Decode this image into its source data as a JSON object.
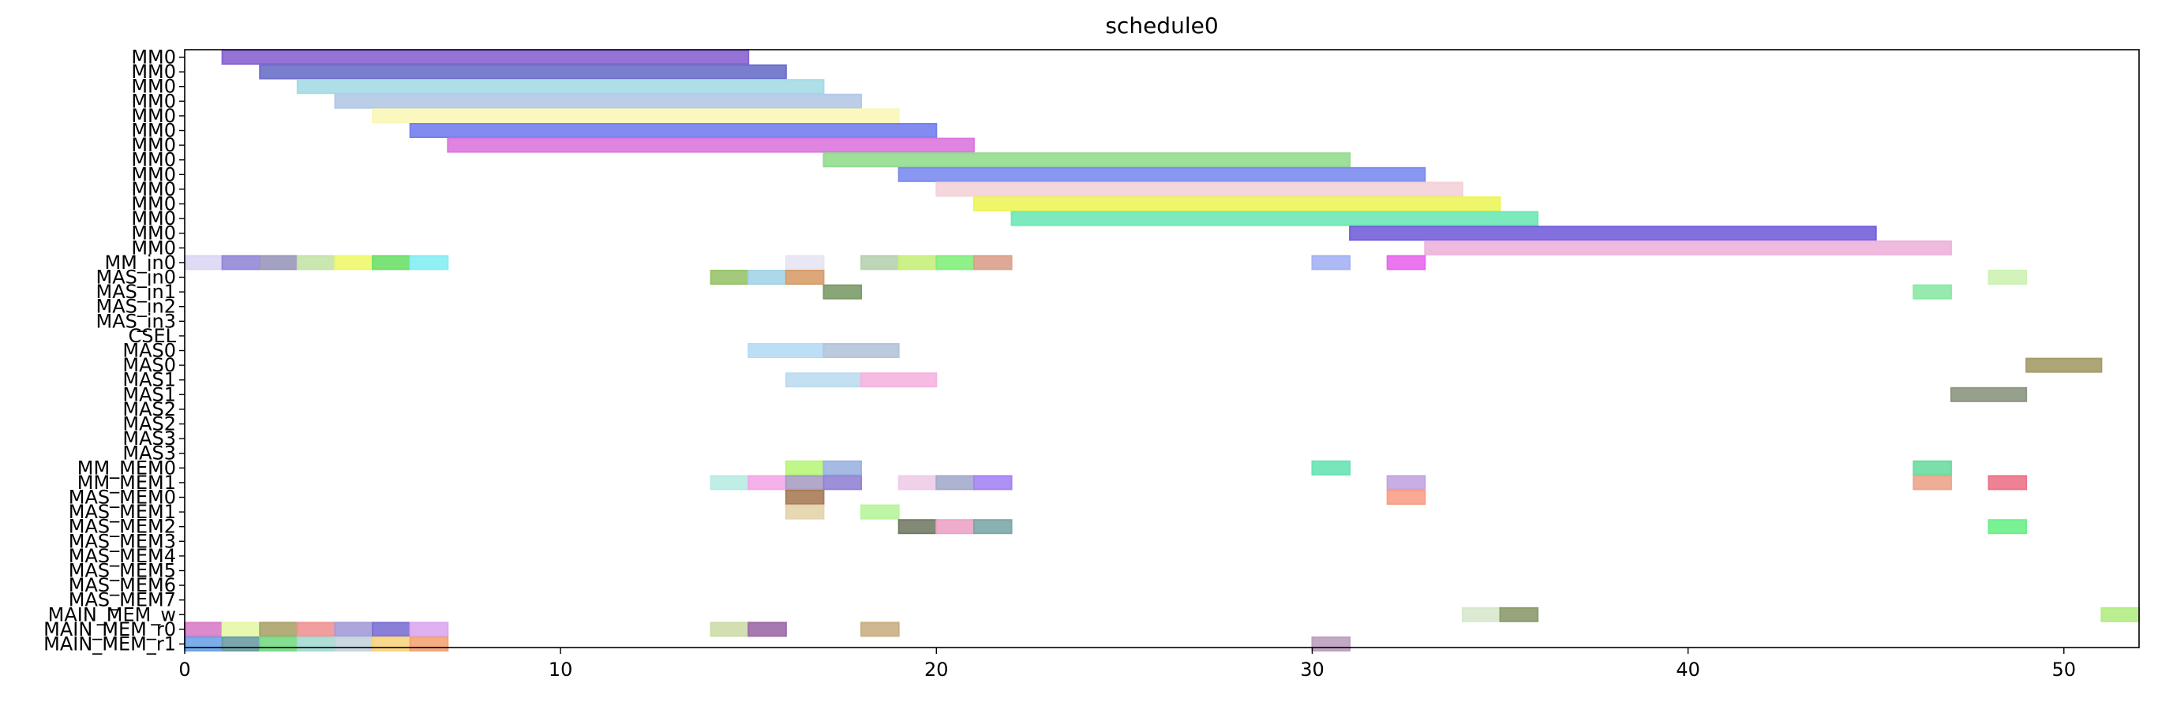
{
  "chart_data": {
    "type": "gantt",
    "title": "schedule0",
    "xlim": [
      0,
      52
    ],
    "x_ticks": [
      0,
      10,
      20,
      30,
      40,
      50
    ],
    "grid": false,
    "rows": [
      "MM0",
      "MM0",
      "MM0",
      "MM0",
      "MM0",
      "MM0",
      "MM0",
      "MM0",
      "MM0",
      "MM0",
      "MM0",
      "MM0",
      "MM0",
      "MM0",
      "MM_in0",
      "MAS_in0",
      "MAS_in1",
      "MAS_in2",
      "MAS_in3",
      "CSEL",
      "MAS0",
      "MAS0",
      "MAS1",
      "MAS1",
      "MAS2",
      "MAS2",
      "MAS3",
      "MAS3",
      "MM_MEM0",
      "MM_MEM1",
      "MAS_MEM0",
      "MAS_MEM1",
      "MAS_MEM2",
      "MAS_MEM3",
      "MAS_MEM4",
      "MAS_MEM5",
      "MAS_MEM6",
      "MAS_MEM7",
      "MAIN_MEM_w",
      "MAIN_MEM_r0",
      "MAIN_MEM_r1"
    ],
    "bars": [
      {
        "row": 0,
        "start": 1,
        "end": 15,
        "color": "#8a63d2"
      },
      {
        "row": 1,
        "start": 2,
        "end": 16,
        "color": "#6a70c8"
      },
      {
        "row": 2,
        "start": 3,
        "end": 17,
        "color": "#a5dbe6"
      },
      {
        "row": 3,
        "start": 4,
        "end": 18,
        "color": "#b4c9e6"
      },
      {
        "row": 4,
        "start": 5,
        "end": 19,
        "color": "#fbf7b8"
      },
      {
        "row": 5,
        "start": 6,
        "end": 20,
        "color": "#7480ee"
      },
      {
        "row": 6,
        "start": 7,
        "end": 21,
        "color": "#dc78de"
      },
      {
        "row": 7,
        "start": 17,
        "end": 31,
        "color": "#94dc8e"
      },
      {
        "row": 8,
        "start": 19,
        "end": 33,
        "color": "#7c8cee"
      },
      {
        "row": 9,
        "start": 20,
        "end": 34,
        "color": "#f3d2d8"
      },
      {
        "row": 10,
        "start": 21,
        "end": 35,
        "color": "#eef55a"
      },
      {
        "row": 11,
        "start": 22,
        "end": 36,
        "color": "#6ee8b6"
      },
      {
        "row": 12,
        "start": 31,
        "end": 45,
        "color": "#7460dc"
      },
      {
        "row": 13,
        "start": 33,
        "end": 47,
        "color": "#ecb4dc"
      },
      {
        "row": 14,
        "start": 0,
        "end": 1,
        "color": "#dcd6f4"
      },
      {
        "row": 14,
        "start": 1,
        "end": 2,
        "color": "#9488d8"
      },
      {
        "row": 14,
        "start": 2,
        "end": 3,
        "color": "#9a98bc"
      },
      {
        "row": 14,
        "start": 3,
        "end": 4,
        "color": "#c4e4a8"
      },
      {
        "row": 14,
        "start": 4,
        "end": 5,
        "color": "#eef86c"
      },
      {
        "row": 14,
        "start": 5,
        "end": 6,
        "color": "#6ee06a"
      },
      {
        "row": 14,
        "start": 6,
        "end": 7,
        "color": "#84eef4"
      },
      {
        "row": 14,
        "start": 16,
        "end": 17,
        "color": "#e8e4f4"
      },
      {
        "row": 14,
        "start": 18,
        "end": 19,
        "color": "#b6d2b0"
      },
      {
        "row": 14,
        "start": 19,
        "end": 20,
        "color": "#c8f07c"
      },
      {
        "row": 14,
        "start": 20,
        "end": 21,
        "color": "#84ee7c"
      },
      {
        "row": 14,
        "start": 21,
        "end": 22,
        "color": "#dca08c"
      },
      {
        "row": 14,
        "start": 30,
        "end": 31,
        "color": "#a4b2f4"
      },
      {
        "row": 14,
        "start": 32,
        "end": 33,
        "color": "#e868ee"
      },
      {
        "row": 15,
        "start": 14,
        "end": 15,
        "color": "#98c46c"
      },
      {
        "row": 15,
        "start": 15,
        "end": 16,
        "color": "#a4d4e8"
      },
      {
        "row": 15,
        "start": 16,
        "end": 17,
        "color": "#d89e6c"
      },
      {
        "row": 15,
        "start": 48,
        "end": 49,
        "color": "#cef2b4"
      },
      {
        "row": 16,
        "start": 17,
        "end": 18,
        "color": "#7c9c6a"
      },
      {
        "row": 16,
        "start": 46,
        "end": 47,
        "color": "#8ce8a4"
      },
      {
        "row": 20,
        "start": 15,
        "end": 17,
        "color": "#b6dcf4"
      },
      {
        "row": 20,
        "start": 17,
        "end": 19,
        "color": "#b4c4dc"
      },
      {
        "row": 21,
        "start": 49,
        "end": 51,
        "color": "#a49c68"
      },
      {
        "row": 22,
        "start": 16,
        "end": 18,
        "color": "#bcdcf0"
      },
      {
        "row": 22,
        "start": 18,
        "end": 20,
        "color": "#f4b4e0"
      },
      {
        "row": 23,
        "start": 47,
        "end": 49,
        "color": "#8c9680"
      },
      {
        "row": 28,
        "start": 16,
        "end": 17,
        "color": "#b8f67c"
      },
      {
        "row": 28,
        "start": 17,
        "end": 18,
        "color": "#9cb4e0"
      },
      {
        "row": 28,
        "start": 30,
        "end": 31,
        "color": "#68e4b4"
      },
      {
        "row": 28,
        "start": 46,
        "end": 47,
        "color": "#6cdca0"
      },
      {
        "row": 29,
        "start": 14,
        "end": 15,
        "color": "#b8ece4"
      },
      {
        "row": 29,
        "start": 15,
        "end": 16,
        "color": "#f4a8e8"
      },
      {
        "row": 29,
        "start": 16,
        "end": 17,
        "color": "#a89ec4"
      },
      {
        "row": 29,
        "start": 17,
        "end": 18,
        "color": "#9484d4"
      },
      {
        "row": 29,
        "start": 19,
        "end": 20,
        "color": "#f0cce8"
      },
      {
        "row": 29,
        "start": 20,
        "end": 21,
        "color": "#a4accc"
      },
      {
        "row": 29,
        "start": 21,
        "end": 22,
        "color": "#a684f4"
      },
      {
        "row": 29,
        "start": 32,
        "end": 33,
        "color": "#c4a4e0"
      },
      {
        "row": 29,
        "start": 46,
        "end": 47,
        "color": "#eca48c"
      },
      {
        "row": 29,
        "start": 48,
        "end": 49,
        "color": "#ec7488"
      },
      {
        "row": 30,
        "start": 16,
        "end": 17,
        "color": "#a87c58"
      },
      {
        "row": 30,
        "start": 32,
        "end": 33,
        "color": "#f8a088"
      },
      {
        "row": 31,
        "start": 16,
        "end": 17,
        "color": "#e4d4ac"
      },
      {
        "row": 31,
        "start": 18,
        "end": 19,
        "color": "#b8f49c"
      },
      {
        "row": 32,
        "start": 19,
        "end": 20,
        "color": "#747c68"
      },
      {
        "row": 32,
        "start": 20,
        "end": 21,
        "color": "#eca4c8"
      },
      {
        "row": 32,
        "start": 21,
        "end": 22,
        "color": "#7ca8a8"
      },
      {
        "row": 32,
        "start": 48,
        "end": 49,
        "color": "#6cf088"
      },
      {
        "row": 38,
        "start": 34,
        "end": 35,
        "color": "#d8e8cc"
      },
      {
        "row": 38,
        "start": 35,
        "end": 36,
        "color": "#8c9c6c"
      },
      {
        "row": 38,
        "start": 51,
        "end": 52,
        "color": "#b4ec84"
      },
      {
        "row": 39,
        "start": 0,
        "end": 1,
        "color": "#d87cc8"
      },
      {
        "row": 39,
        "start": 1,
        "end": 2,
        "color": "#e4f8a8"
      },
      {
        "row": 39,
        "start": 2,
        "end": 3,
        "color": "#aca46c"
      },
      {
        "row": 39,
        "start": 3,
        "end": 4,
        "color": "#f29494"
      },
      {
        "row": 39,
        "start": 4,
        "end": 5,
        "color": "#a49cd8"
      },
      {
        "row": 39,
        "start": 5,
        "end": 6,
        "color": "#7c70d4"
      },
      {
        "row": 39,
        "start": 6,
        "end": 7,
        "color": "#dca8ee"
      },
      {
        "row": 39,
        "start": 14,
        "end": 15,
        "color": "#ccdca8"
      },
      {
        "row": 39,
        "start": 15,
        "end": 16,
        "color": "#9c6ca8"
      },
      {
        "row": 39,
        "start": 18,
        "end": 19,
        "color": "#c8b084"
      },
      {
        "row": 40,
        "start": 0,
        "end": 1,
        "color": "#6ca4e8"
      },
      {
        "row": 40,
        "start": 1,
        "end": 2,
        "color": "#6c9ca4"
      },
      {
        "row": 40,
        "start": 2,
        "end": 3,
        "color": "#74dc84"
      },
      {
        "row": 40,
        "start": 3,
        "end": 4,
        "color": "#a4dcd4"
      },
      {
        "row": 40,
        "start": 4,
        "end": 5,
        "color": "#c4d4dc"
      },
      {
        "row": 40,
        "start": 5,
        "end": 6,
        "color": "#f8d47c"
      },
      {
        "row": 40,
        "start": 6,
        "end": 7,
        "color": "#f4a474"
      },
      {
        "row": 40,
        "start": 30,
        "end": 31,
        "color": "#bca0bc"
      }
    ]
  }
}
